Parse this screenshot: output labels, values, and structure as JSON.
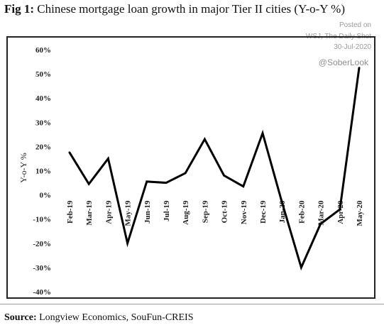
{
  "figure": {
    "title_label": "Fig 1:",
    "title_text": "Chinese mortgage loan growth in major Tier II cities (Y-o-Y %)",
    "source_label": "Source:",
    "source_text": "Longview Economics, SouFun-CREIS"
  },
  "watermark": {
    "line1": "Posted on",
    "line2": "WSJ, The Daily Shot",
    "line3": "30-Jul-2020",
    "handle": "@SoberLook"
  },
  "chart_data": {
    "type": "line",
    "title": "",
    "xlabel": "",
    "ylabel": "Y-o-Y %",
    "ylim": [
      -40,
      60
    ],
    "yticks": [
      60,
      50,
      40,
      30,
      20,
      10,
      0,
      -10,
      -20,
      -30,
      -40
    ],
    "ytick_labels": [
      "60%",
      "50%",
      "40%",
      "30%",
      "20%",
      "10%",
      "0%",
      "-10%",
      "-20%",
      "-30%",
      "-40%"
    ],
    "x_tick_labels": [
      "Feb-19",
      "Mar-19",
      "Apr-19",
      "May-19",
      "Jun-19",
      "Jul-19",
      "Aug-19",
      "Sep-19",
      "Oct-19",
      "Nov-19",
      "Dec-19",
      "Jan-20",
      "Feb-20",
      "Mar-20",
      "Apr-20",
      "May-20"
    ],
    "series": [
      {
        "name": "",
        "color": "#000000",
        "x": [
          "Feb-19",
          "Mar-19",
          "Apr-19",
          "May-19",
          "Jun-19",
          "Jul-19",
          "Aug-19",
          "Sep-19",
          "Oct-19",
          "Nov-19",
          "Dec-19",
          "Jan-20",
          "Feb-20",
          "Mar-20",
          "Apr-20",
          "May-20"
        ],
        "values": [
          17.5,
          4.5,
          15.0,
          -20.0,
          5.5,
          5.0,
          9.0,
          23.0,
          8.0,
          3.5,
          25.5,
          -3.0,
          -30.0,
          -12.0,
          -6.0,
          52.5
        ]
      }
    ],
    "grid": false,
    "legend": "none"
  }
}
